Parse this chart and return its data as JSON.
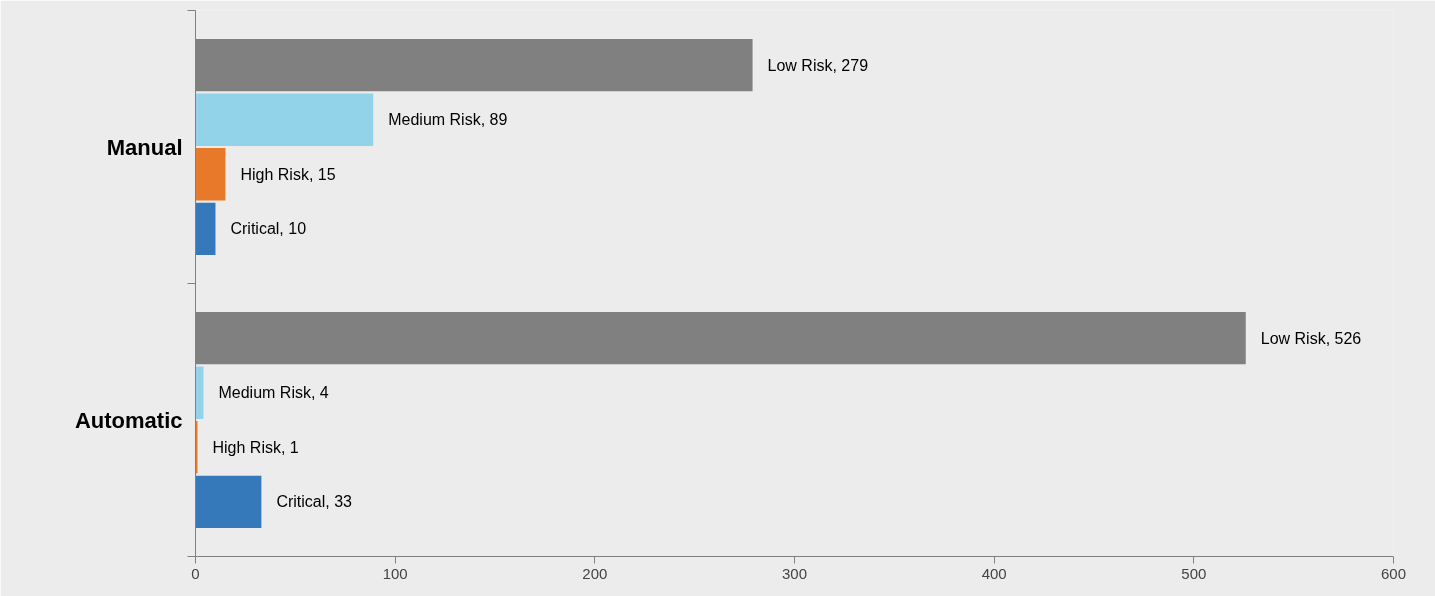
{
  "chart_data": {
    "type": "bar",
    "orientation": "horizontal",
    "categories": [
      "Manual",
      "Automatic"
    ],
    "series": [
      {
        "color": "#808080",
        "values": [
          279,
          526
        ],
        "value_labels": [
          "Low Risk, 279",
          "Low Risk, 526"
        ]
      },
      {
        "color": "#93d3ea",
        "values": [
          89,
          4
        ],
        "value_labels": [
          "Medium Risk, 89",
          "Medium Risk, 4"
        ]
      },
      {
        "color": "#e8792b",
        "values": [
          15,
          1
        ],
        "value_labels": [
          "High Risk, 15",
          "High Risk, 1"
        ]
      },
      {
        "color": "#3579bb",
        "values": [
          10,
          33
        ],
        "value_labels": [
          "Critical, 10",
          "Critical, 33"
        ]
      }
    ],
    "xlim": [
      0,
      600
    ],
    "xticks": [
      0,
      100,
      200,
      300,
      400,
      500,
      600
    ],
    "grid": false
  }
}
